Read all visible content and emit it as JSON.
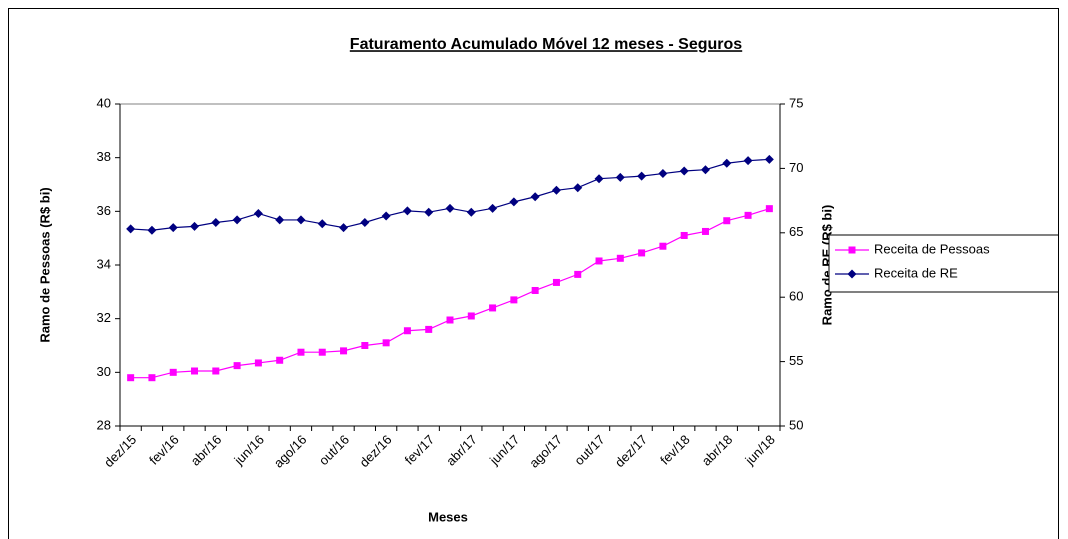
{
  "chart_data": {
    "type": "line",
    "title": "Faturamento Acumulado Móvel 12 meses - Seguros",
    "x_label": "Meses",
    "y_label": "Ramo de Pessoas (R$ bi)",
    "y2_label": "Ramo de RE (R$ bi)",
    "categories": [
      "dez/15",
      null,
      "fev/16",
      null,
      "abr/16",
      null,
      "jun/16",
      null,
      "ago/16",
      null,
      "out/16",
      null,
      "dez/16",
      null,
      "fev/17",
      null,
      "abr/17",
      null,
      "jun/17",
      null,
      "ago/17",
      null,
      "out/17",
      null,
      "dez/17",
      null,
      "fev/18",
      null,
      "abr/18",
      null,
      "jun/18"
    ],
    "series": [
      {
        "name": "Receita de Pessoas",
        "color": "#ff00ff",
        "marker": "square",
        "values": [
          29.8,
          29.8,
          30.0,
          30.05,
          30.05,
          30.25,
          30.35,
          30.45,
          30.75,
          30.75,
          30.8,
          31.0,
          31.1,
          31.55,
          31.6,
          31.95,
          32.1,
          32.4,
          32.7,
          33.05,
          33.35,
          33.65,
          34.15,
          34.25,
          34.45,
          34.7,
          35.1,
          35.25,
          35.65,
          35.85,
          36.1
        ]
      },
      {
        "name": "Receita de RE",
        "color": "#000080",
        "marker": "diamond",
        "axis": "y2",
        "values": [
          65.3,
          65.2,
          65.4,
          65.5,
          65.8,
          66.0,
          66.5,
          66.0,
          66.0,
          65.7,
          65.4,
          65.8,
          66.3,
          66.7,
          66.6,
          66.9,
          66.6,
          66.9,
          67.4,
          67.8,
          68.3,
          68.5,
          69.2,
          69.3,
          69.4,
          69.6,
          69.8,
          69.9,
          70.4,
          70.6,
          70.7
        ]
      }
    ],
    "ylim": [
      28,
      40
    ],
    "yticks": [
      28,
      30,
      32,
      34,
      36,
      38,
      40
    ],
    "y2lim": [
      50,
      75
    ],
    "y2ticks": [
      50,
      55,
      60,
      65,
      70,
      75
    ],
    "grid": false,
    "legend": "right"
  }
}
